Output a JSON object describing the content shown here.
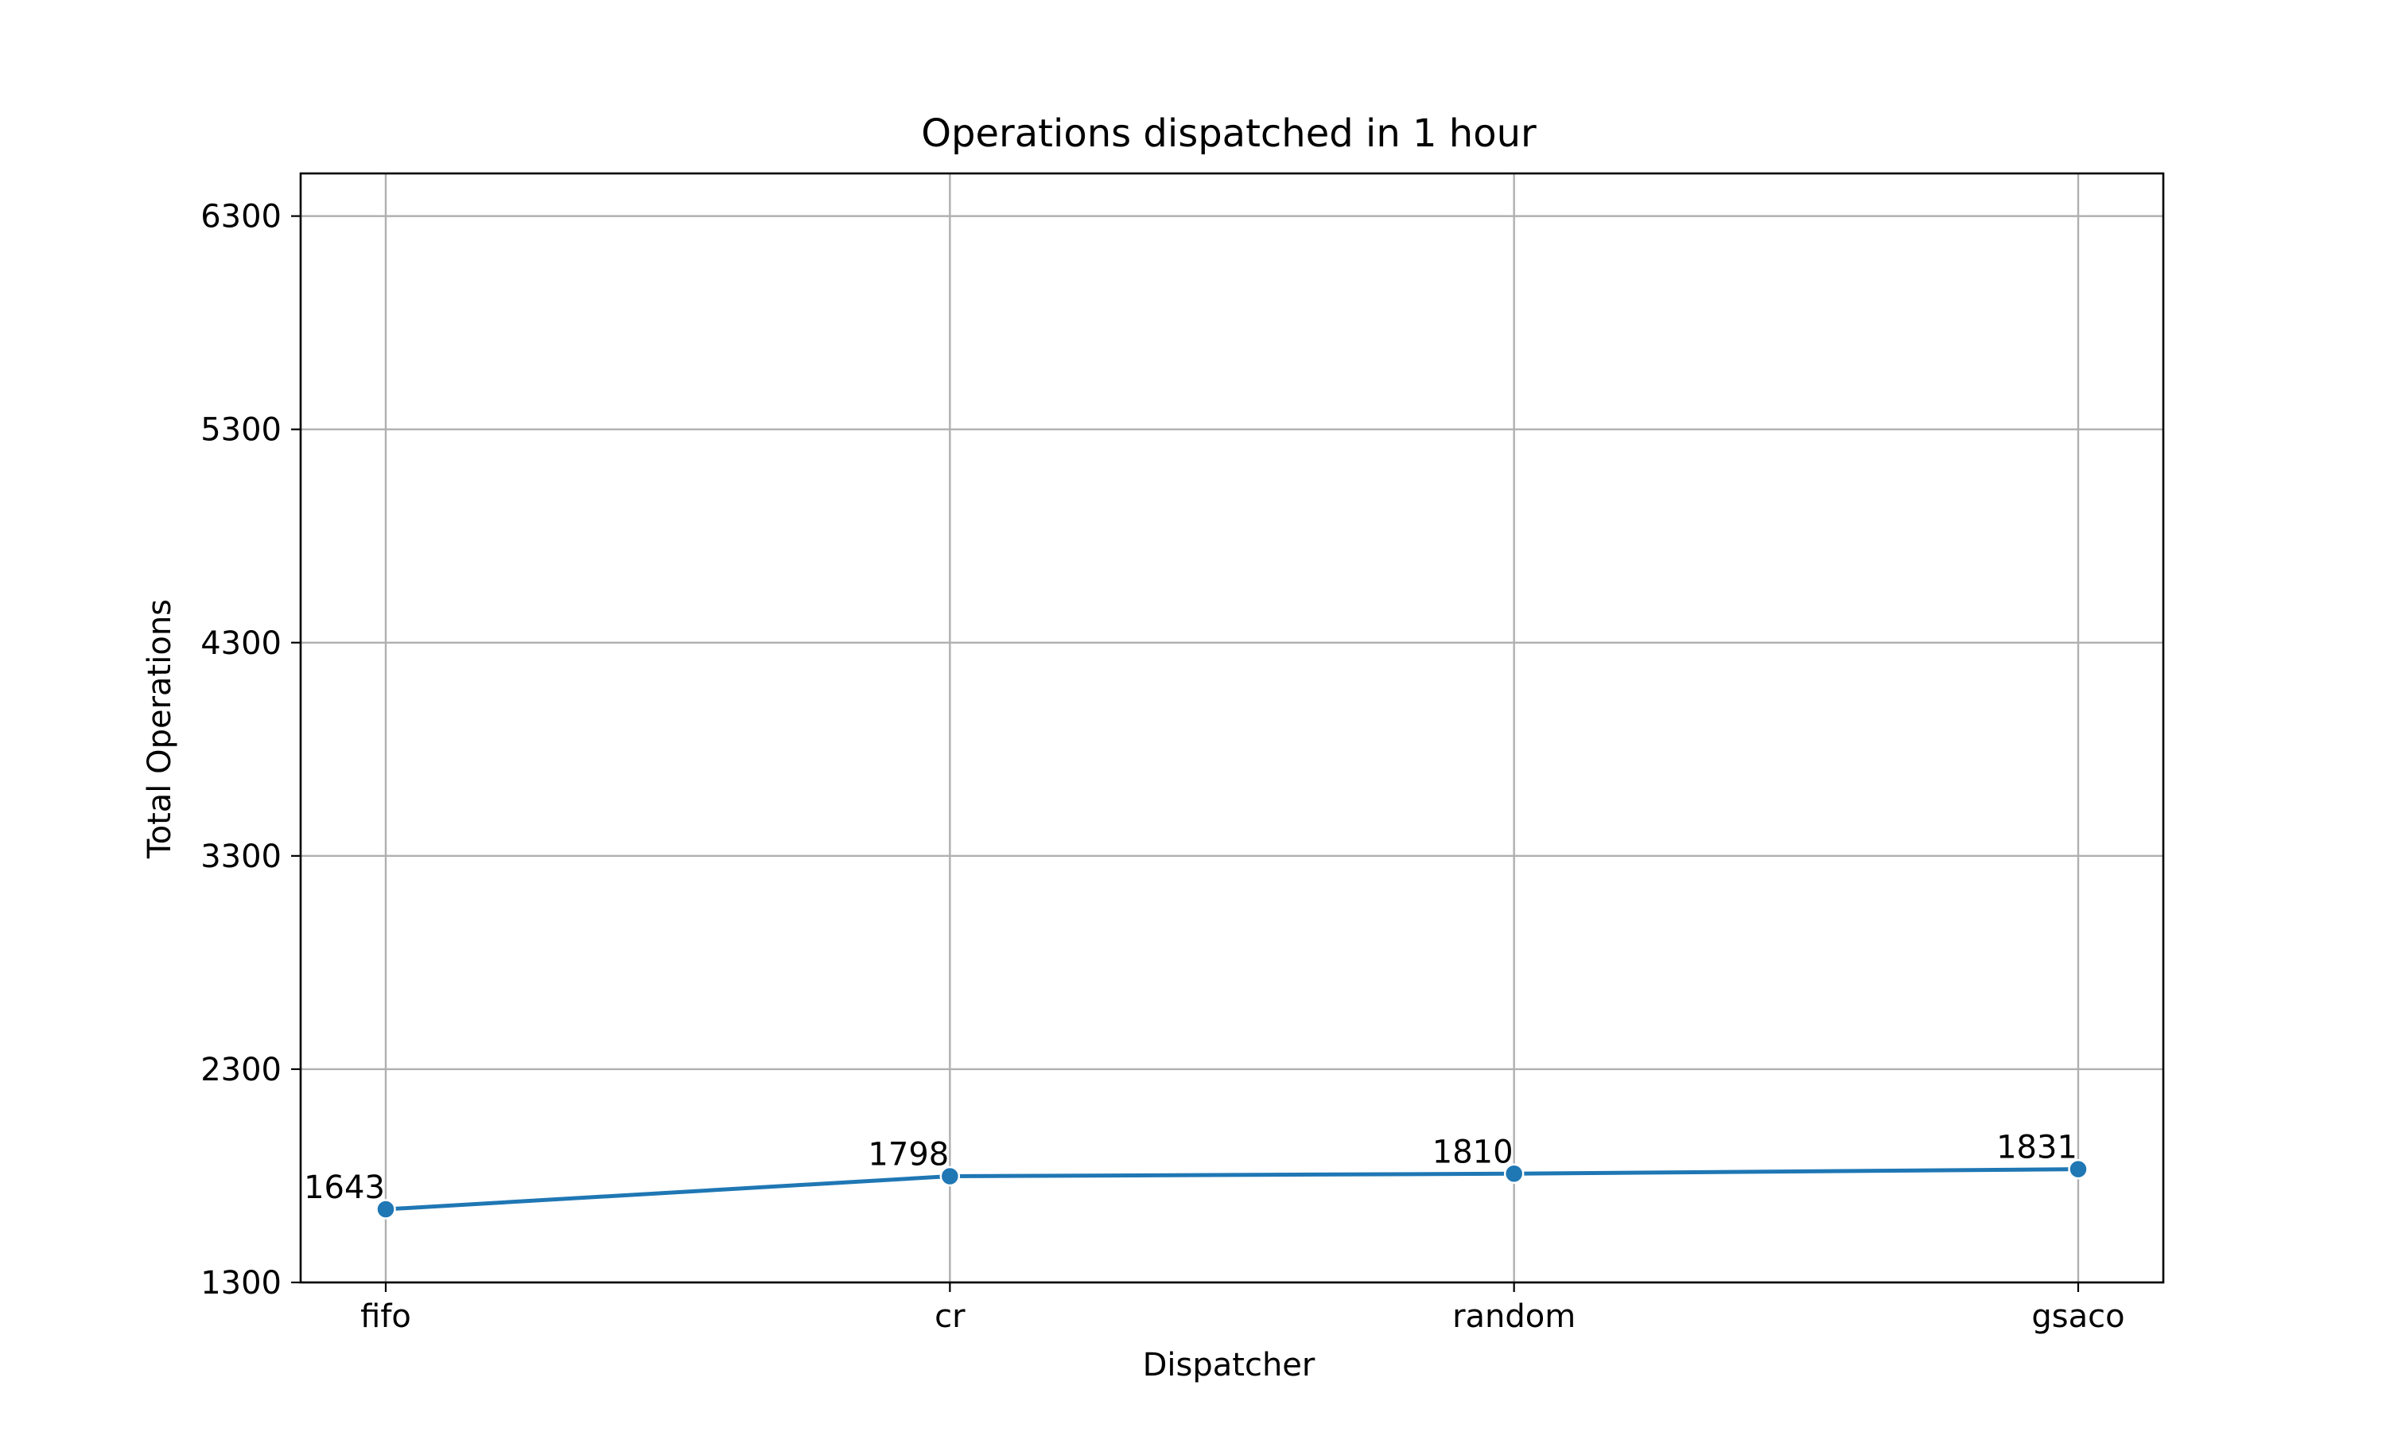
{
  "chart_data": {
    "type": "line",
    "title": "Operations dispatched in 1 hour",
    "xlabel": "Dispatcher",
    "ylabel": "Total Operations",
    "categories": [
      "fifo",
      "cr",
      "random",
      "gsaco"
    ],
    "series": [
      {
        "values": [
          1643,
          1798,
          1810,
          1831
        ]
      }
    ],
    "data_labels": [
      "1643",
      "1798",
      "1810",
      "1831"
    ],
    "ylim": [
      1300,
      6500
    ],
    "yticks": [
      1300,
      2300,
      3300,
      4300,
      5300,
      6300
    ],
    "ytick_labels": [
      "1300",
      "2300",
      "3300",
      "4300",
      "5300",
      "6300"
    ],
    "grid": true,
    "legend": "none",
    "marker": "circle",
    "colors": {
      "line": "#1f77b4",
      "grid": "#b0b0b0",
      "axes": "#000000"
    }
  }
}
